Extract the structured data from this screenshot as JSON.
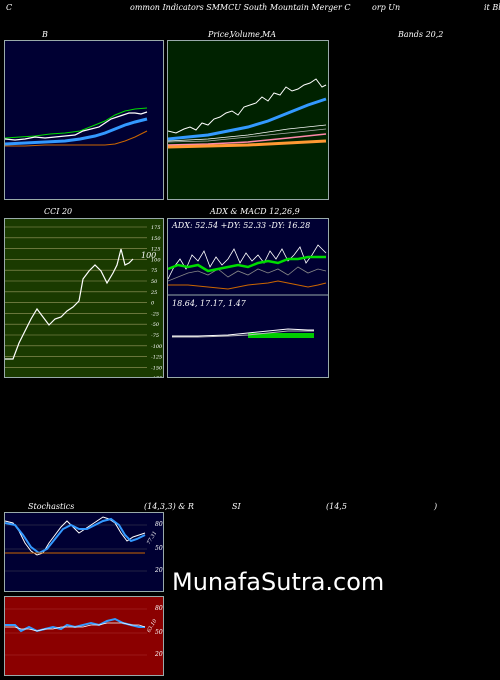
{
  "header": {
    "prefix": "C",
    "title": "ommon  Indicators SMMCU South Mountain Merger C",
    "title_tail": "orp Un",
    "right": "it Bl"
  },
  "panels": {
    "bollinger_label_left": "B",
    "price_label": "Price,",
    "volume_label": "Volume,",
    "ma_label": "MA",
    "bollinger_label_right": "Bands 20,2",
    "cci_label": "CCI 20",
    "adx_label": "ADX  & MACD 12,26,9",
    "adx_values": "ADX: 52.54  +DY: 52.33 -DY: 16.28",
    "macd_values": "18.64,  17.17,  1.47",
    "cci_current": "100",
    "stoch_label": "Stochastics",
    "stoch_params": "(14,3,3) & R",
    "rsi_label": "SI",
    "rsi_params": "(14,5",
    "rsi_close": ")",
    "stoch_value_tag": "77.31",
    "rsi_value_tag": "63.10"
  },
  "cci_scale": [
    "175",
    "150",
    "125",
    "100",
    "75",
    "50",
    "25",
    "0",
    "-25",
    "-50",
    "-75",
    "-100",
    "-125",
    "-150",
    "-175"
  ],
  "stoch_scale": [
    "80",
    "50",
    "20"
  ],
  "rsi_scale": [
    "80",
    "50",
    "20"
  ],
  "colors": {
    "panel_navy": "#000033",
    "panel_green_dark": "#002200",
    "panel_cci": "#1a3a00",
    "panel_rsi": "#8b0000",
    "line_blue": "#3399ff",
    "line_green": "#00dd00",
    "line_orange": "#cc6600",
    "line_white": "#ffffff"
  },
  "watermark": "MunafaSutra.com"
}
